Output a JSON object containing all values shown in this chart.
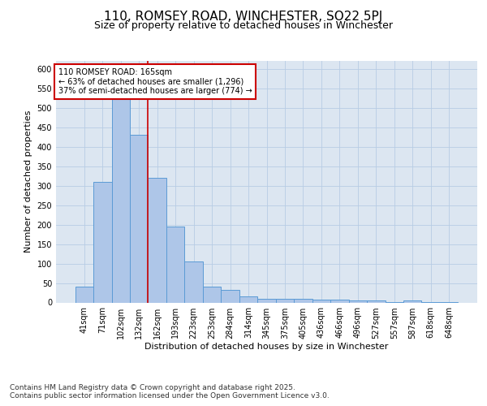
{
  "title1": "110, ROMSEY ROAD, WINCHESTER, SO22 5PJ",
  "title2": "Size of property relative to detached houses in Winchester",
  "xlabel": "Distribution of detached houses by size in Winchester",
  "ylabel": "Number of detached properties",
  "categories": [
    "41sqm",
    "71sqm",
    "102sqm",
    "132sqm",
    "162sqm",
    "193sqm",
    "223sqm",
    "253sqm",
    "284sqm",
    "314sqm",
    "345sqm",
    "375sqm",
    "405sqm",
    "436sqm",
    "466sqm",
    "496sqm",
    "527sqm",
    "557sqm",
    "587sqm",
    "618sqm",
    "648sqm"
  ],
  "values": [
    40,
    310,
    530,
    430,
    320,
    195,
    105,
    40,
    32,
    15,
    10,
    10,
    10,
    8,
    8,
    5,
    5,
    2,
    5,
    1,
    1
  ],
  "bar_color": "#aec6e8",
  "bar_edge_color": "#5b9bd5",
  "background_color": "#dce6f1",
  "grid_color": "#b8cce4",
  "annotation_text": "110 ROMSEY ROAD: 165sqm\n← 63% of detached houses are smaller (1,296)\n37% of semi-detached houses are larger (774) →",
  "vline_x_index": 4,
  "vline_color": "#cc0000",
  "annotation_box_edge": "#cc0000",
  "ylim": [
    0,
    620
  ],
  "yticks": [
    0,
    50,
    100,
    150,
    200,
    250,
    300,
    350,
    400,
    450,
    500,
    550,
    600
  ],
  "footnote": "Contains HM Land Registry data © Crown copyright and database right 2025.\nContains public sector information licensed under the Open Government Licence v3.0.",
  "title1_fontsize": 11,
  "title2_fontsize": 9,
  "label_fontsize": 8,
  "tick_fontsize": 7,
  "annotation_fontsize": 7,
  "footnote_fontsize": 6.5
}
